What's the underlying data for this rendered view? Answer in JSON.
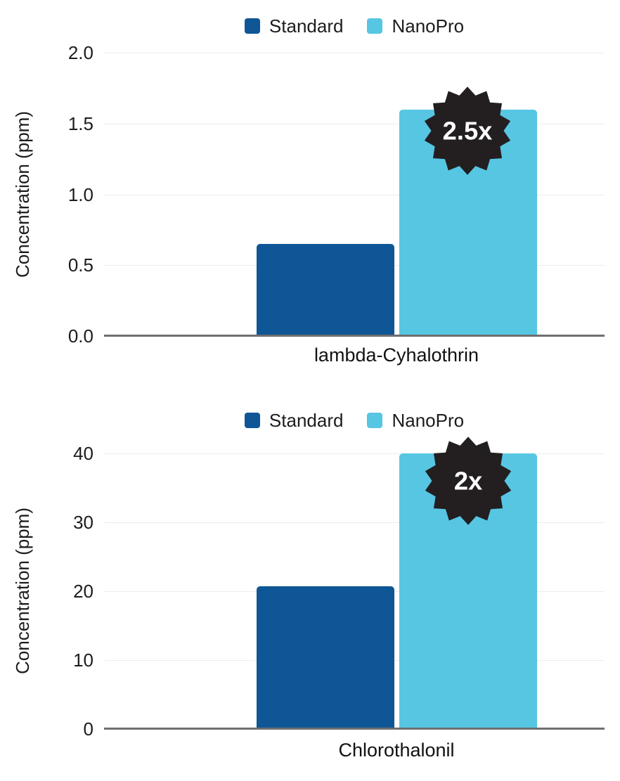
{
  "palette": {
    "standard_blue": "#0e5695",
    "nanopro_blue": "#57c6e3",
    "badge_black": "#231f20",
    "axis_gray": "#6f6f6f",
    "grid_gray": "#ececec",
    "text_dark": "#1c1c1c"
  },
  "chart_data": [
    {
      "type": "bar",
      "categories": [
        "lambda-Cyhalothrin"
      ],
      "xlabel": "lambda-Cyhalothrin",
      "ylabel": "Concentration (ppm)",
      "ylim": [
        0,
        2.0
      ],
      "yticks": [
        "0.0",
        "0.5",
        "1.0",
        "1.5",
        "2.0"
      ],
      "grid": "horizontal",
      "legend_position": "top-center",
      "series": [
        {
          "name": "Standard",
          "values": [
            0.65
          ],
          "value": 0.65,
          "color": "#0e5695"
        },
        {
          "name": "NanoPro",
          "values": [
            1.6
          ],
          "value": 1.6,
          "color": "#57c6e3"
        }
      ],
      "badge": "2.5x"
    },
    {
      "type": "bar",
      "categories": [
        "Chlorothalonil"
      ],
      "xlabel": "Chlorothalonil",
      "ylabel": "Concentration (ppm)",
      "ylim": [
        0,
        40
      ],
      "yticks": [
        "0",
        "10",
        "20",
        "30",
        "40"
      ],
      "grid": "horizontal",
      "legend_position": "top-center",
      "series": [
        {
          "name": "Standard",
          "values": [
            20.7
          ],
          "value": 20.7,
          "color": "#0e5695"
        },
        {
          "name": "NanoPro",
          "values": [
            40
          ],
          "value": 40,
          "color": "#57c6e3"
        }
      ],
      "badge": "2x"
    }
  ]
}
